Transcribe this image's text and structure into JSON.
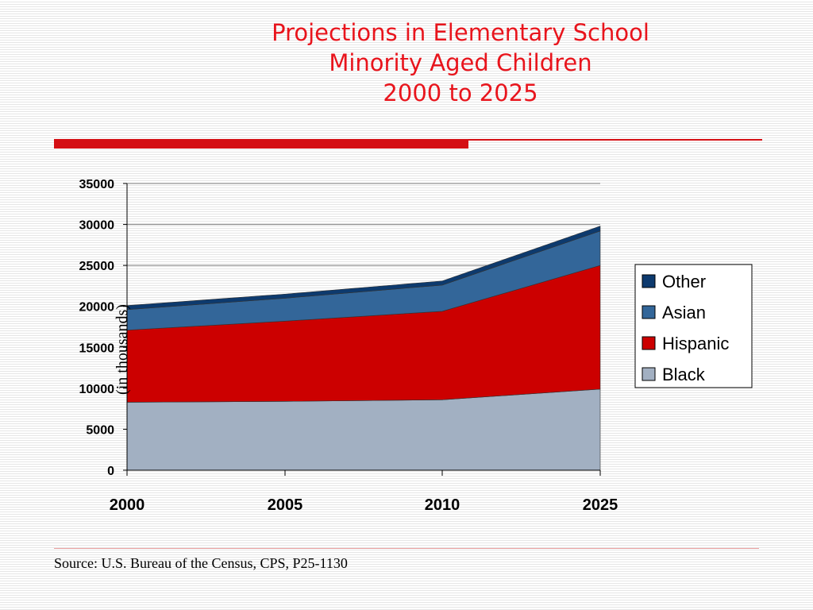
{
  "slide": {
    "title_lines": [
      "Projections in Elementary School",
      "Minority Aged Children",
      "2000 to 2025"
    ],
    "source": "Source: U.S. Bureau of the Census, CPS, P25-1130"
  },
  "colors": {
    "title": "#e8141c",
    "rule": "#d40f14",
    "Black": "#a2b0c2",
    "Hispanic": "#cc0000",
    "Asian": "#336699",
    "Other": "#0d3a6e"
  },
  "chart_data": {
    "type": "area",
    "stacked": true,
    "categories": [
      "2000",
      "2005",
      "2010",
      "2025"
    ],
    "ylabel": "(in thousands)",
    "xlabel": "",
    "ylim": [
      0,
      35000
    ],
    "yticks": [
      0,
      5000,
      10000,
      15000,
      20000,
      25000,
      30000,
      35000
    ],
    "grid": true,
    "legend": "right",
    "series": [
      {
        "name": "Black",
        "values": [
          8300,
          8400,
          8600,
          9900
        ]
      },
      {
        "name": "Hispanic",
        "values": [
          8800,
          9800,
          10800,
          15100
        ]
      },
      {
        "name": "Asian",
        "values": [
          2500,
          2800,
          3200,
          4200
        ]
      },
      {
        "name": "Other",
        "values": [
          500,
          500,
          500,
          600
        ]
      }
    ]
  }
}
